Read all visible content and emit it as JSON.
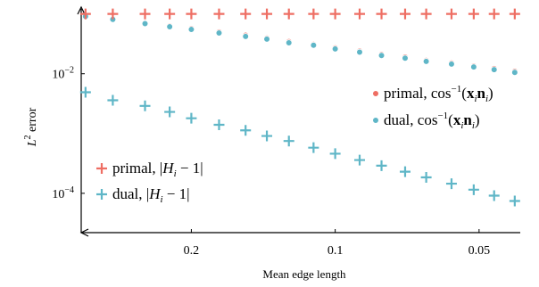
{
  "chart_data": {
    "type": "scatter",
    "xlabel": "Mean edge length",
    "ylabel": "L2 error",
    "ylabel_base": "L",
    "ylabel_sup": "2",
    "ylabel_rest": " error",
    "x_scale": "log-reversed",
    "y_scale": "log",
    "xlim": [
      0.34,
      0.041
    ],
    "ylim": [
      2.2e-05,
      0.13
    ],
    "x_ticks": [
      {
        "value": 0.2,
        "label": "0.2"
      },
      {
        "value": 0.1,
        "label": "0.1"
      },
      {
        "value": 0.05,
        "label": "0.05"
      }
    ],
    "y_ticks": [
      {
        "value": 0.01,
        "base": "10",
        "exp": "−2"
      },
      {
        "value": 0.0001,
        "base": "10",
        "exp": "−4"
      }
    ],
    "x": [
      0.333,
      0.292,
      0.25,
      0.222,
      0.2,
      0.175,
      0.154,
      0.139,
      0.125,
      0.111,
      0.1,
      0.0889,
      0.08,
      0.0714,
      0.0645,
      0.0571,
      0.0513,
      0.0465,
      0.0421
    ],
    "series": [
      {
        "name": "primal, |H_i − 1|",
        "marker": "plus",
        "color": "#ee6e63",
        "values": [
          0.1,
          0.1,
          0.1,
          0.1,
          0.1,
          0.1,
          0.1,
          0.1,
          0.1,
          0.1,
          0.1,
          0.1,
          0.1,
          0.1,
          0.1,
          0.1,
          0.1,
          0.1,
          0.1
        ]
      },
      {
        "name": "dual, |H_i − 1|",
        "marker": "plus",
        "color": "#5fb6c7",
        "values": [
          0.0049,
          0.0036,
          0.0029,
          0.0023,
          0.0018,
          0.0014,
          0.00113,
          0.00091,
          0.00075,
          0.00058,
          0.00046,
          0.00036,
          0.00029,
          0.00023,
          0.000185,
          0.000145,
          0.000115,
          9.15e-05,
          7.45e-05
        ]
      },
      {
        "name": "primal, cos⁻¹(xᵢnᵢ)",
        "marker": "circle",
        "color": "#ee6e63",
        "values": [
          0.093,
          0.083,
          0.071,
          0.063,
          0.057,
          0.05,
          0.044,
          0.0395,
          0.0345,
          0.031,
          0.027,
          0.024,
          0.021,
          0.019,
          0.0167,
          0.0151,
          0.0135,
          0.0122,
          0.011
        ]
      },
      {
        "name": "dual, cos⁻¹(xᵢnᵢ)",
        "marker": "circle",
        "color": "#5fb6c7",
        "values": [
          0.091,
          0.081,
          0.069,
          0.061,
          0.055,
          0.048,
          0.042,
          0.038,
          0.033,
          0.03,
          0.026,
          0.023,
          0.0202,
          0.0182,
          0.0161,
          0.0145,
          0.013,
          0.0117,
          0.0105
        ]
      }
    ],
    "legends": [
      {
        "position": "right",
        "entries": [
          {
            "series": 2,
            "prefix": "primal, cos",
            "sup": "−1",
            "open": "(",
            "b1": "x",
            "s1": "i",
            "b2": "n",
            "s2": "i",
            "close": ")"
          },
          {
            "series": 3,
            "prefix": "dual, cos",
            "sup": "−1",
            "open": "(",
            "b1": "x",
            "s1": "i",
            "b2": "n",
            "s2": "i",
            "close": ")"
          }
        ]
      },
      {
        "position": "bottom-left",
        "entries": [
          {
            "series": 0,
            "prefix": "primal, ",
            "bar1": "|",
            "var": "H",
            "sub": "i",
            "rest": " − 1",
            "bar2": "|"
          },
          {
            "series": 1,
            "prefix": "dual, ",
            "bar1": "|",
            "var": "H",
            "sub": "i",
            "rest": " − 1",
            "bar2": "|"
          }
        ]
      }
    ]
  }
}
